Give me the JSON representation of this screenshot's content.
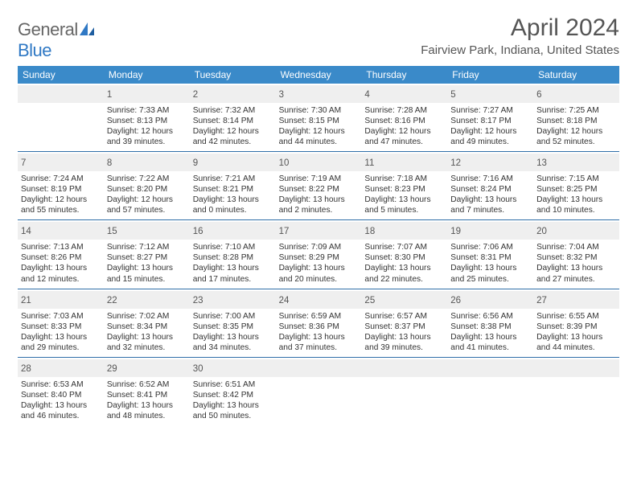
{
  "brand": {
    "part1": "General",
    "part2": "Blue"
  },
  "title": "April 2024",
  "location": "Fairview Park, Indiana, United States",
  "day_headers": [
    "Sunday",
    "Monday",
    "Tuesday",
    "Wednesday",
    "Thursday",
    "Friday",
    "Saturday"
  ],
  "colors": {
    "header_bg": "#3a8ac9",
    "header_text": "#ffffff",
    "rule": "#2f6ea8",
    "daynum_bg": "#efefef",
    "brand_gray": "#666666",
    "brand_blue": "#2f78c4"
  },
  "weeks": [
    [
      null,
      {
        "n": "1",
        "sr": "Sunrise: 7:33 AM",
        "ss": "Sunset: 8:13 PM",
        "d1": "Daylight: 12 hours",
        "d2": "and 39 minutes."
      },
      {
        "n": "2",
        "sr": "Sunrise: 7:32 AM",
        "ss": "Sunset: 8:14 PM",
        "d1": "Daylight: 12 hours",
        "d2": "and 42 minutes."
      },
      {
        "n": "3",
        "sr": "Sunrise: 7:30 AM",
        "ss": "Sunset: 8:15 PM",
        "d1": "Daylight: 12 hours",
        "d2": "and 44 minutes."
      },
      {
        "n": "4",
        "sr": "Sunrise: 7:28 AM",
        "ss": "Sunset: 8:16 PM",
        "d1": "Daylight: 12 hours",
        "d2": "and 47 minutes."
      },
      {
        "n": "5",
        "sr": "Sunrise: 7:27 AM",
        "ss": "Sunset: 8:17 PM",
        "d1": "Daylight: 12 hours",
        "d2": "and 49 minutes."
      },
      {
        "n": "6",
        "sr": "Sunrise: 7:25 AM",
        "ss": "Sunset: 8:18 PM",
        "d1": "Daylight: 12 hours",
        "d2": "and 52 minutes."
      }
    ],
    [
      {
        "n": "7",
        "sr": "Sunrise: 7:24 AM",
        "ss": "Sunset: 8:19 PM",
        "d1": "Daylight: 12 hours",
        "d2": "and 55 minutes."
      },
      {
        "n": "8",
        "sr": "Sunrise: 7:22 AM",
        "ss": "Sunset: 8:20 PM",
        "d1": "Daylight: 12 hours",
        "d2": "and 57 minutes."
      },
      {
        "n": "9",
        "sr": "Sunrise: 7:21 AM",
        "ss": "Sunset: 8:21 PM",
        "d1": "Daylight: 13 hours",
        "d2": "and 0 minutes."
      },
      {
        "n": "10",
        "sr": "Sunrise: 7:19 AM",
        "ss": "Sunset: 8:22 PM",
        "d1": "Daylight: 13 hours",
        "d2": "and 2 minutes."
      },
      {
        "n": "11",
        "sr": "Sunrise: 7:18 AM",
        "ss": "Sunset: 8:23 PM",
        "d1": "Daylight: 13 hours",
        "d2": "and 5 minutes."
      },
      {
        "n": "12",
        "sr": "Sunrise: 7:16 AM",
        "ss": "Sunset: 8:24 PM",
        "d1": "Daylight: 13 hours",
        "d2": "and 7 minutes."
      },
      {
        "n": "13",
        "sr": "Sunrise: 7:15 AM",
        "ss": "Sunset: 8:25 PM",
        "d1": "Daylight: 13 hours",
        "d2": "and 10 minutes."
      }
    ],
    [
      {
        "n": "14",
        "sr": "Sunrise: 7:13 AM",
        "ss": "Sunset: 8:26 PM",
        "d1": "Daylight: 13 hours",
        "d2": "and 12 minutes."
      },
      {
        "n": "15",
        "sr": "Sunrise: 7:12 AM",
        "ss": "Sunset: 8:27 PM",
        "d1": "Daylight: 13 hours",
        "d2": "and 15 minutes."
      },
      {
        "n": "16",
        "sr": "Sunrise: 7:10 AM",
        "ss": "Sunset: 8:28 PM",
        "d1": "Daylight: 13 hours",
        "d2": "and 17 minutes."
      },
      {
        "n": "17",
        "sr": "Sunrise: 7:09 AM",
        "ss": "Sunset: 8:29 PM",
        "d1": "Daylight: 13 hours",
        "d2": "and 20 minutes."
      },
      {
        "n": "18",
        "sr": "Sunrise: 7:07 AM",
        "ss": "Sunset: 8:30 PM",
        "d1": "Daylight: 13 hours",
        "d2": "and 22 minutes."
      },
      {
        "n": "19",
        "sr": "Sunrise: 7:06 AM",
        "ss": "Sunset: 8:31 PM",
        "d1": "Daylight: 13 hours",
        "d2": "and 25 minutes."
      },
      {
        "n": "20",
        "sr": "Sunrise: 7:04 AM",
        "ss": "Sunset: 8:32 PM",
        "d1": "Daylight: 13 hours",
        "d2": "and 27 minutes."
      }
    ],
    [
      {
        "n": "21",
        "sr": "Sunrise: 7:03 AM",
        "ss": "Sunset: 8:33 PM",
        "d1": "Daylight: 13 hours",
        "d2": "and 29 minutes."
      },
      {
        "n": "22",
        "sr": "Sunrise: 7:02 AM",
        "ss": "Sunset: 8:34 PM",
        "d1": "Daylight: 13 hours",
        "d2": "and 32 minutes."
      },
      {
        "n": "23",
        "sr": "Sunrise: 7:00 AM",
        "ss": "Sunset: 8:35 PM",
        "d1": "Daylight: 13 hours",
        "d2": "and 34 minutes."
      },
      {
        "n": "24",
        "sr": "Sunrise: 6:59 AM",
        "ss": "Sunset: 8:36 PM",
        "d1": "Daylight: 13 hours",
        "d2": "and 37 minutes."
      },
      {
        "n": "25",
        "sr": "Sunrise: 6:57 AM",
        "ss": "Sunset: 8:37 PM",
        "d1": "Daylight: 13 hours",
        "d2": "and 39 minutes."
      },
      {
        "n": "26",
        "sr": "Sunrise: 6:56 AM",
        "ss": "Sunset: 8:38 PM",
        "d1": "Daylight: 13 hours",
        "d2": "and 41 minutes."
      },
      {
        "n": "27",
        "sr": "Sunrise: 6:55 AM",
        "ss": "Sunset: 8:39 PM",
        "d1": "Daylight: 13 hours",
        "d2": "and 44 minutes."
      }
    ],
    [
      {
        "n": "28",
        "sr": "Sunrise: 6:53 AM",
        "ss": "Sunset: 8:40 PM",
        "d1": "Daylight: 13 hours",
        "d2": "and 46 minutes."
      },
      {
        "n": "29",
        "sr": "Sunrise: 6:52 AM",
        "ss": "Sunset: 8:41 PM",
        "d1": "Daylight: 13 hours",
        "d2": "and 48 minutes."
      },
      {
        "n": "30",
        "sr": "Sunrise: 6:51 AM",
        "ss": "Sunset: 8:42 PM",
        "d1": "Daylight: 13 hours",
        "d2": "and 50 minutes."
      },
      null,
      null,
      null,
      null
    ]
  ]
}
